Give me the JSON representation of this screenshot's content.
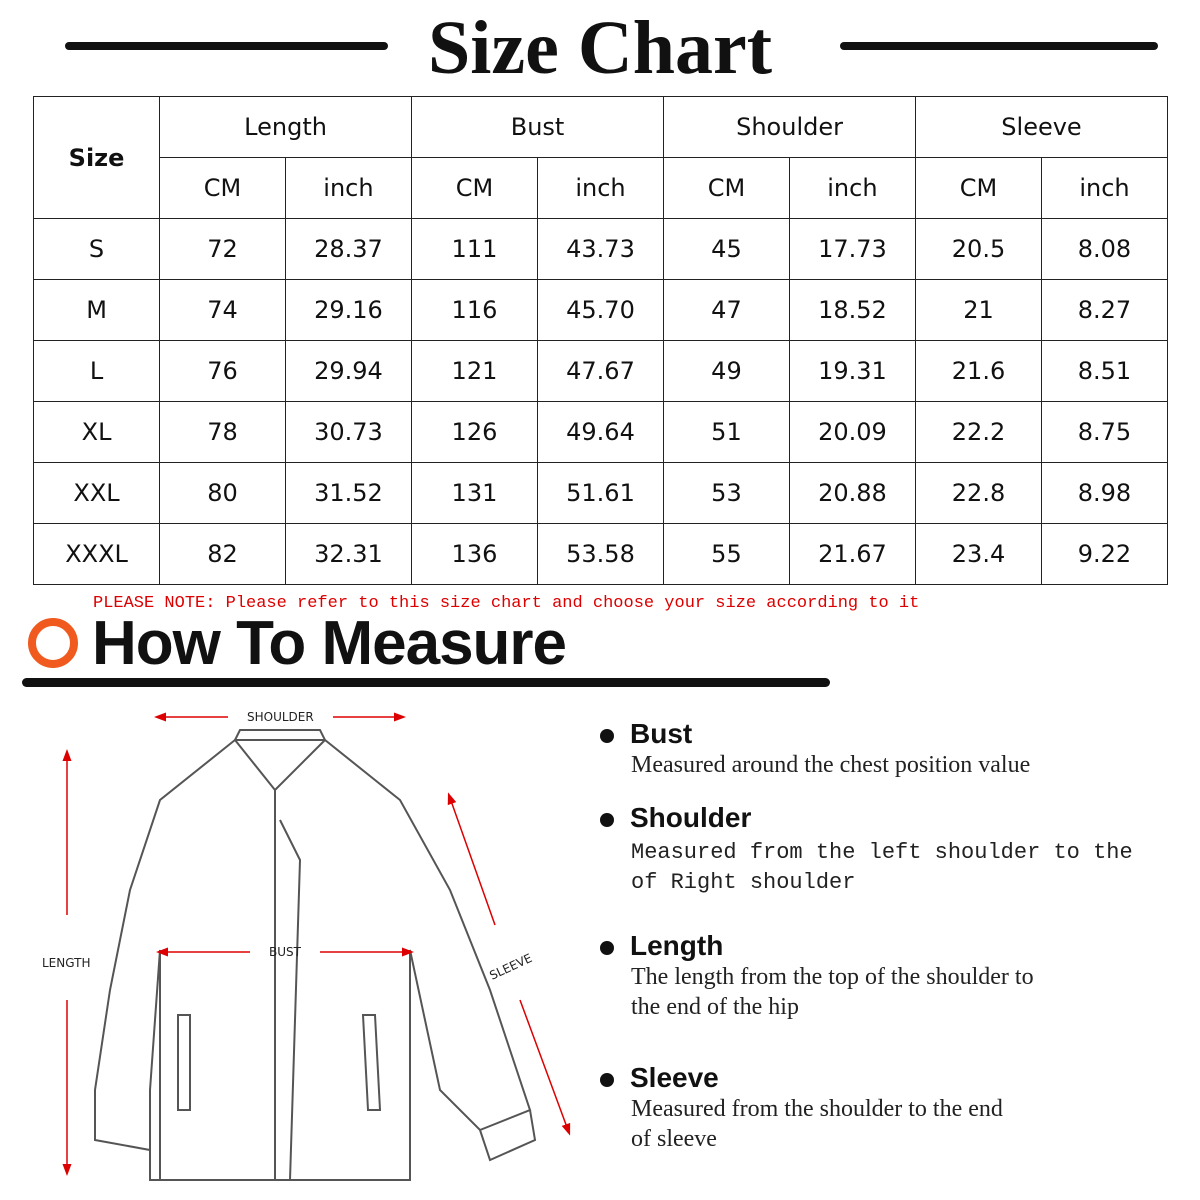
{
  "title": "Size Chart",
  "table": {
    "size_header": "Size",
    "groups": [
      "Length",
      "Bust",
      "Shoulder",
      "Sleeve"
    ],
    "units": [
      "CM",
      "inch",
      "CM",
      "inch",
      "CM",
      "inch",
      "CM",
      "inch"
    ],
    "rows": [
      [
        "S",
        "72",
        "28.37",
        "111",
        "43.73",
        "45",
        "17.73",
        "20.5",
        "8.08"
      ],
      [
        "M",
        "74",
        "29.16",
        "116",
        "45.70",
        "47",
        "18.52",
        "21",
        "8.27"
      ],
      [
        "L",
        "76",
        "29.94",
        "121",
        "47.67",
        "49",
        "19.31",
        "21.6",
        "8.51"
      ],
      [
        "XL",
        "78",
        "30.73",
        "126",
        "49.64",
        "51",
        "20.09",
        "22.2",
        "8.75"
      ],
      [
        "XXL",
        "80",
        "31.52",
        "131",
        "51.61",
        "53",
        "20.88",
        "22.8",
        "8.98"
      ],
      [
        "XXXL",
        "82",
        "32.31",
        "136",
        "53.58",
        "55",
        "21.67",
        "23.4",
        "9.22"
      ]
    ]
  },
  "note": "PLEASE NOTE: Please refer to this size chart and choose your size according to it",
  "how_to": "How To Measure",
  "diagram": {
    "shoulder": "SHOULDER",
    "bust": "BUST",
    "length": "LENGTH",
    "sleeve": "SLEEVE"
  },
  "measures": [
    {
      "name": "Bust",
      "desc": [
        "Measured around the chest position value"
      ]
    },
    {
      "name": "Shoulder",
      "desc": [
        "Measured from the left shoulder to the",
        "of Right shoulder"
      ]
    },
    {
      "name": "Length",
      "desc": [
        "The length from the top of the shoulder to",
        "the end of the hip"
      ]
    },
    {
      "name": "Sleeve",
      "desc": [
        "Measured from the shoulder to the end",
        "of sleeve"
      ]
    }
  ],
  "colors": {
    "accent": "#f05a1e",
    "note": "#dd0000",
    "arrow": "#d00000"
  }
}
